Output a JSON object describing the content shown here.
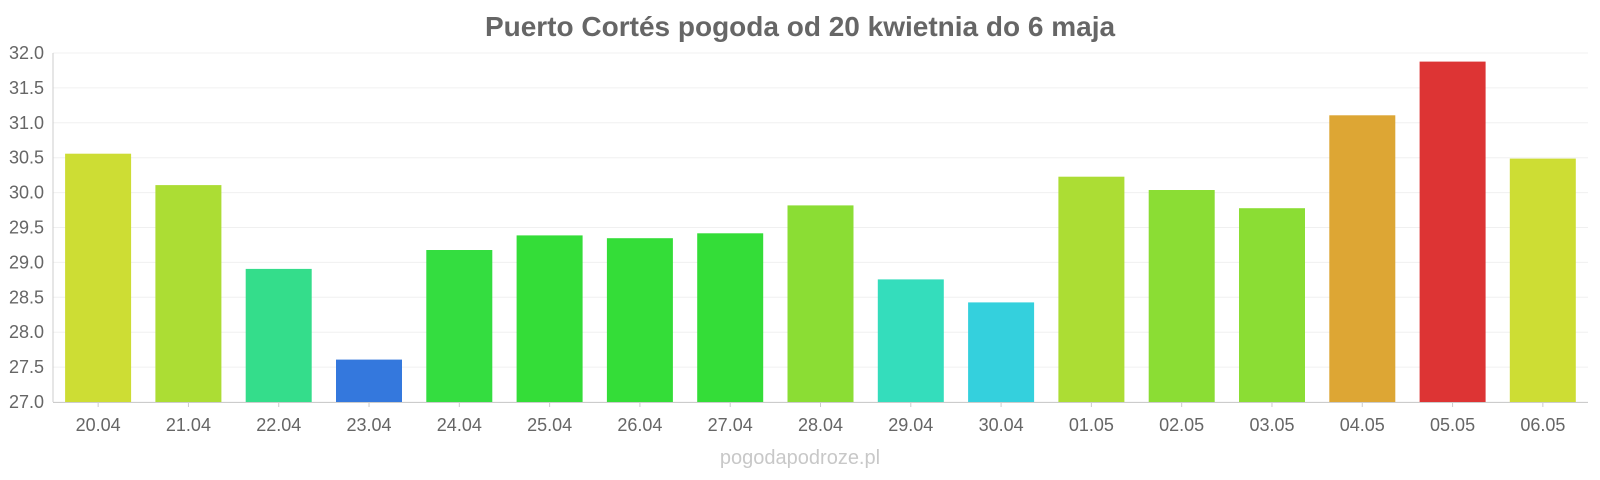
{
  "chart_data": {
    "type": "bar",
    "title": "Puerto Cortés pogoda od 20 kwietnia do 6 maja",
    "categories": [
      "20.04",
      "21.04",
      "22.04",
      "23.04",
      "24.04",
      "25.04",
      "26.04",
      "27.04",
      "28.04",
      "29.04",
      "30.04",
      "01.05",
      "02.05",
      "03.05",
      "04.05",
      "05.05",
      "06.05"
    ],
    "values": [
      30.55,
      30.1,
      28.9,
      27.6,
      29.17,
      29.38,
      29.34,
      29.41,
      29.81,
      28.75,
      28.42,
      30.22,
      30.03,
      29.77,
      31.1,
      31.87,
      30.48
    ],
    "colors": [
      "#cddd34",
      "#acdd34",
      "#34dd8b",
      "#3478dd",
      "#34dd40",
      "#34dd38",
      "#34dd38",
      "#34dd38",
      "#8bdd34",
      "#34ddbc",
      "#34d0dd",
      "#acdd34",
      "#8bdd34",
      "#8bdd34",
      "#dda634",
      "#dd3434",
      "#cddd34"
    ],
    "ylim": [
      27.0,
      32.0
    ],
    "yticks": [
      "27.0",
      "27.5",
      "28.0",
      "28.5",
      "29.0",
      "29.5",
      "30.0",
      "30.5",
      "31.0",
      "31.5",
      "32.0"
    ],
    "xlabel": "",
    "ylabel": "",
    "grid": true,
    "legend": "none"
  },
  "footer": {
    "credit": "pogodapodroze.pl"
  }
}
